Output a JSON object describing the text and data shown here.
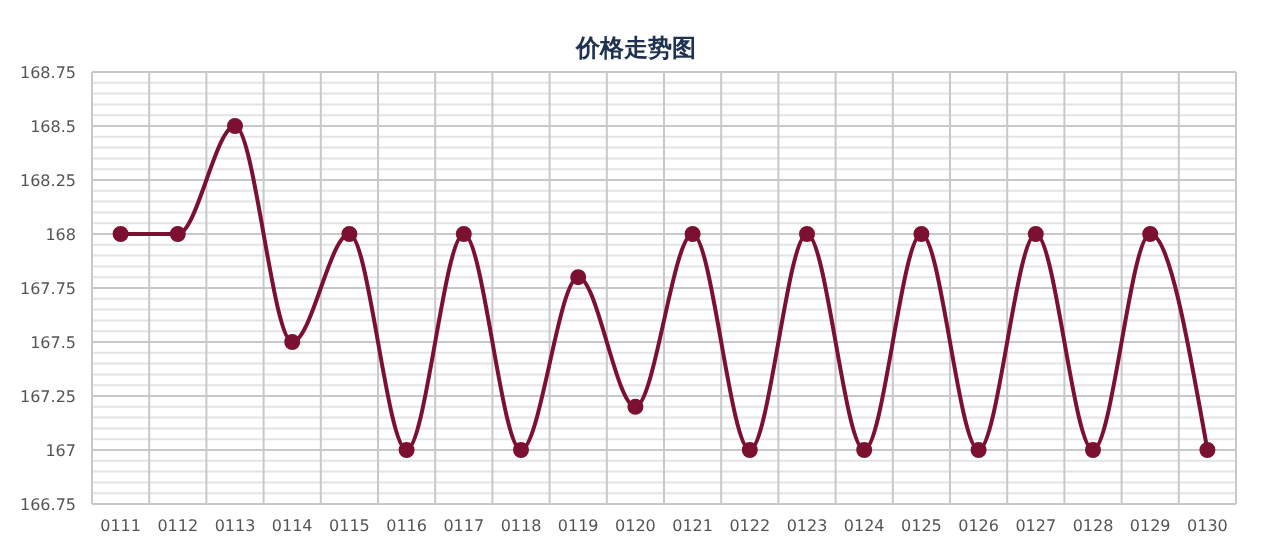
{
  "chart_data": {
    "type": "line",
    "title": "价格走势图",
    "categories": [
      "0111",
      "0112",
      "0113",
      "0114",
      "0115",
      "0116",
      "0117",
      "0118",
      "0119",
      "0120",
      "0121",
      "0122",
      "0123",
      "0124",
      "0125",
      "0126",
      "0127",
      "0128",
      "0129",
      "0130"
    ],
    "series": [
      {
        "color": "#7b1030",
        "values": [
          168,
          168,
          168.5,
          167.5,
          168,
          167,
          168,
          167,
          167.8,
          167.2,
          168,
          167,
          168,
          167,
          168,
          167,
          168,
          167,
          168,
          167
        ]
      }
    ],
    "ylim": [
      166.75,
      168.75
    ],
    "yticks": [
      166.75,
      167,
      167.25,
      167.5,
      167.75,
      168,
      168.25,
      168.5,
      168.75
    ],
    "grid": true,
    "marker": "circle",
    "line_style": "solid"
  }
}
